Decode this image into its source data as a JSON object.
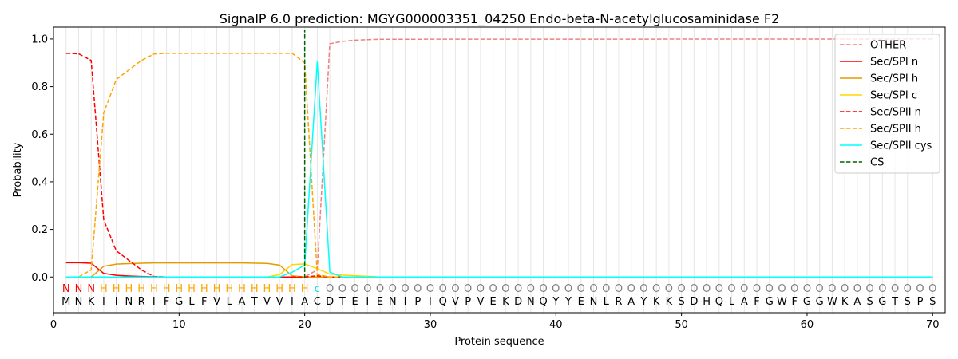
{
  "chart_data": {
    "type": "line",
    "title": "SignalP 6.0 prediction: MGYG000003351_04250 Endo-beta-N-acetylglucosaminidase F2",
    "xlabel": "Protein sequence",
    "ylabel": "Probability",
    "xlim": [
      0,
      71
    ],
    "ylim": [
      -0.15,
      1.05
    ],
    "xticks": [
      0,
      10,
      20,
      30,
      40,
      50,
      60,
      70
    ],
    "yticks": [
      0.0,
      0.2,
      0.4,
      0.6,
      0.8,
      1.0
    ],
    "ytick_labels": [
      "0.0",
      "0.2",
      "0.4",
      "0.6",
      "0.8",
      "1.0"
    ],
    "grid": "vertical lines at each residue",
    "legend_position": "top-right",
    "sequence": [
      "M",
      "N",
      "K",
      "I",
      "I",
      "N",
      "R",
      "I",
      "F",
      "G",
      "L",
      "F",
      "V",
      "L",
      "A",
      "T",
      "V",
      "V",
      "I",
      "A",
      "C",
      "D",
      "T",
      "E",
      "I",
      "E",
      "N",
      "I",
      "P",
      "I",
      "Q",
      "V",
      "P",
      "V",
      "E",
      "K",
      "D",
      "N",
      "Q",
      "Y",
      "Y",
      "E",
      "N",
      "L",
      "R",
      "A",
      "Y",
      "K",
      "K",
      "S",
      "D",
      "H",
      "Q",
      "L",
      "A",
      "F",
      "G",
      "W",
      "F",
      "G",
      "G",
      "W",
      "K",
      "A",
      "S",
      "G",
      "T",
      "S",
      "P",
      "S"
    ],
    "region_labels": [
      "N",
      "N",
      "N",
      "H",
      "H",
      "H",
      "H",
      "H",
      "H",
      "H",
      "H",
      "H",
      "H",
      "H",
      "H",
      "H",
      "H",
      "H",
      "H",
      "H",
      "c",
      "O",
      "O",
      "O",
      "O",
      "O",
      "O",
      "O",
      "O",
      "O",
      "O",
      "O",
      "O",
      "O",
      "O",
      "O",
      "O",
      "O",
      "O",
      "O",
      "O",
      "O",
      "O",
      "O",
      "O",
      "O",
      "O",
      "O",
      "O",
      "O",
      "O",
      "O",
      "O",
      "O",
      "O",
      "O",
      "O",
      "O",
      "O",
      "O",
      "O",
      "O",
      "O",
      "O",
      "O",
      "O",
      "O",
      "O",
      "O",
      "O"
    ],
    "region_colors": {
      "N": "#ff0000",
      "H": "#ffa500",
      "c": "#00e5ee",
      "O": "#808080"
    },
    "series": [
      {
        "name": "OTHER",
        "color": "#f08080",
        "dash": "dashed",
        "x": [
          1,
          2,
          3,
          4,
          5,
          6,
          7,
          8,
          9,
          10,
          11,
          12,
          13,
          14,
          15,
          16,
          17,
          18,
          19,
          20,
          21,
          22,
          23,
          24,
          25,
          26,
          70
        ],
        "y": [
          0,
          0,
          0,
          0,
          0,
          0,
          0,
          0,
          0,
          0,
          0,
          0,
          0,
          0,
          0,
          0,
          0,
          0,
          0,
          0,
          0.03,
          0.98,
          0.99,
          0.995,
          0.997,
          0.999,
          1.0
        ]
      },
      {
        "name": "Sec/SPI n",
        "color": "#ff0000",
        "dash": "solid",
        "x": [
          1,
          2,
          3,
          4,
          5,
          6,
          7,
          8,
          9,
          20,
          21,
          70
        ],
        "y": [
          0.06,
          0.06,
          0.058,
          0.015,
          0.007,
          0.004,
          0.002,
          0.001,
          0,
          0,
          0,
          0
        ]
      },
      {
        "name": "Sec/SPI h",
        "color": "#e69a00",
        "dash": "solid",
        "x": [
          1,
          2,
          3,
          4,
          5,
          6,
          7,
          8,
          10,
          15,
          17,
          18,
          19,
          20,
          21,
          22,
          70
        ],
        "y": [
          0,
          0,
          0,
          0.045,
          0.054,
          0.056,
          0.058,
          0.059,
          0.059,
          0.059,
          0.057,
          0.05,
          0.005,
          0,
          0,
          0,
          0
        ]
      },
      {
        "name": "Sec/SPI c",
        "color": "#ffd700",
        "dash": "solid",
        "x": [
          1,
          17,
          18,
          19,
          20,
          21,
          22,
          23,
          25,
          26,
          70
        ],
        "y": [
          0,
          0,
          0.01,
          0.052,
          0.055,
          0.035,
          0.012,
          0.008,
          0.003,
          0,
          0
        ]
      },
      {
        "name": "Sec/SPII n",
        "color": "#ff0000",
        "dash": "dashed",
        "x": [
          1,
          2,
          3,
          4,
          5,
          6,
          7,
          8,
          9,
          20,
          21,
          22,
          70
        ],
        "y": [
          0.94,
          0.938,
          0.91,
          0.24,
          0.11,
          0.07,
          0.03,
          0.002,
          0,
          0,
          0.005,
          0,
          0
        ]
      },
      {
        "name": "Sec/SPII h",
        "color": "#ffa500",
        "dash": "dashed",
        "x": [
          1,
          2,
          3,
          4,
          5,
          6,
          7,
          8,
          9,
          10,
          15,
          19,
          20,
          21,
          22,
          70
        ],
        "y": [
          0,
          0,
          0.03,
          0.69,
          0.83,
          0.87,
          0.91,
          0.937,
          0.94,
          0.94,
          0.94,
          0.94,
          0.9,
          0.01,
          0,
          0
        ]
      },
      {
        "name": "Sec/SPII cys",
        "color": "#00ffff",
        "dash": "solid",
        "x": [
          1,
          18,
          19,
          20,
          21,
          22,
          23,
          70
        ],
        "y": [
          0,
          0,
          0.02,
          0.05,
          0.905,
          0.02,
          0,
          0
        ]
      },
      {
        "name": "CS",
        "color": "#006400",
        "dash": "dashed",
        "x": [
          20,
          20
        ],
        "y": [
          -0.005,
          1.04
        ]
      }
    ]
  }
}
